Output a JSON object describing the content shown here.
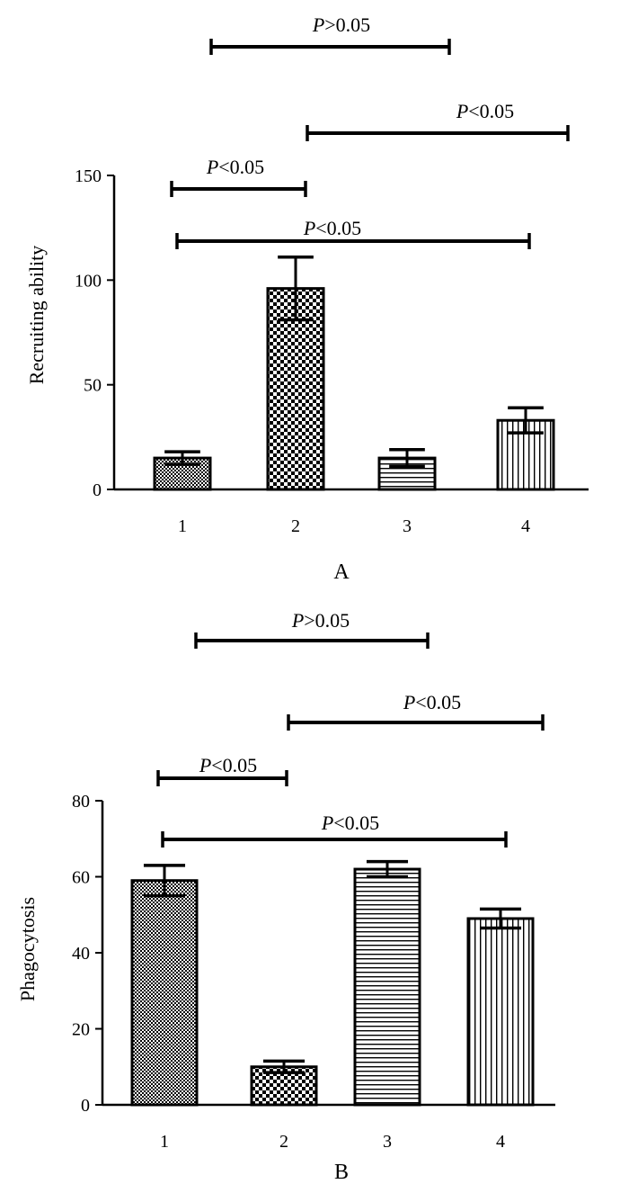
{
  "chart_data": [
    {
      "type": "bar",
      "panel_label": "A",
      "ylabel": "Recruiting ability",
      "xlabel": "",
      "categories": [
        "1",
        "2",
        "3",
        "4"
      ],
      "values": [
        15,
        96,
        15,
        33
      ],
      "errors": [
        3,
        15,
        4,
        6
      ],
      "ylim": [
        0,
        150
      ],
      "yticks": [
        0,
        50,
        100,
        150
      ],
      "patterns": [
        "fine-dots",
        "checker",
        "horizontal-lines",
        "vertical-lines"
      ],
      "significance": [
        {
          "from": "1",
          "to": "3",
          "label": "P>0.05"
        },
        {
          "from": "2",
          "to": "4",
          "label": "P<0.05"
        },
        {
          "from": "1",
          "to": "2",
          "label": "P<0.05"
        },
        {
          "from": "1",
          "to": "4",
          "label": "P<0.05"
        }
      ]
    },
    {
      "type": "bar",
      "panel_label": "B",
      "ylabel": "Phagocytosis",
      "xlabel": "",
      "categories": [
        "1",
        "2",
        "3",
        "4"
      ],
      "values": [
        59,
        10,
        62,
        49
      ],
      "errors": [
        4,
        1.5,
        2,
        2.5
      ],
      "ylim": [
        0,
        80
      ],
      "yticks": [
        0,
        20,
        40,
        60,
        80
      ],
      "patterns": [
        "fine-dots",
        "checker",
        "horizontal-lines",
        "vertical-lines"
      ],
      "significance": [
        {
          "from": "1",
          "to": "3",
          "label": "P>0.05"
        },
        {
          "from": "2",
          "to": "4",
          "label": "P<0.05"
        },
        {
          "from": "1",
          "to": "2",
          "label": "P<0.05"
        },
        {
          "from": "1",
          "to": "4",
          "label": "P<0.05"
        }
      ]
    }
  ]
}
